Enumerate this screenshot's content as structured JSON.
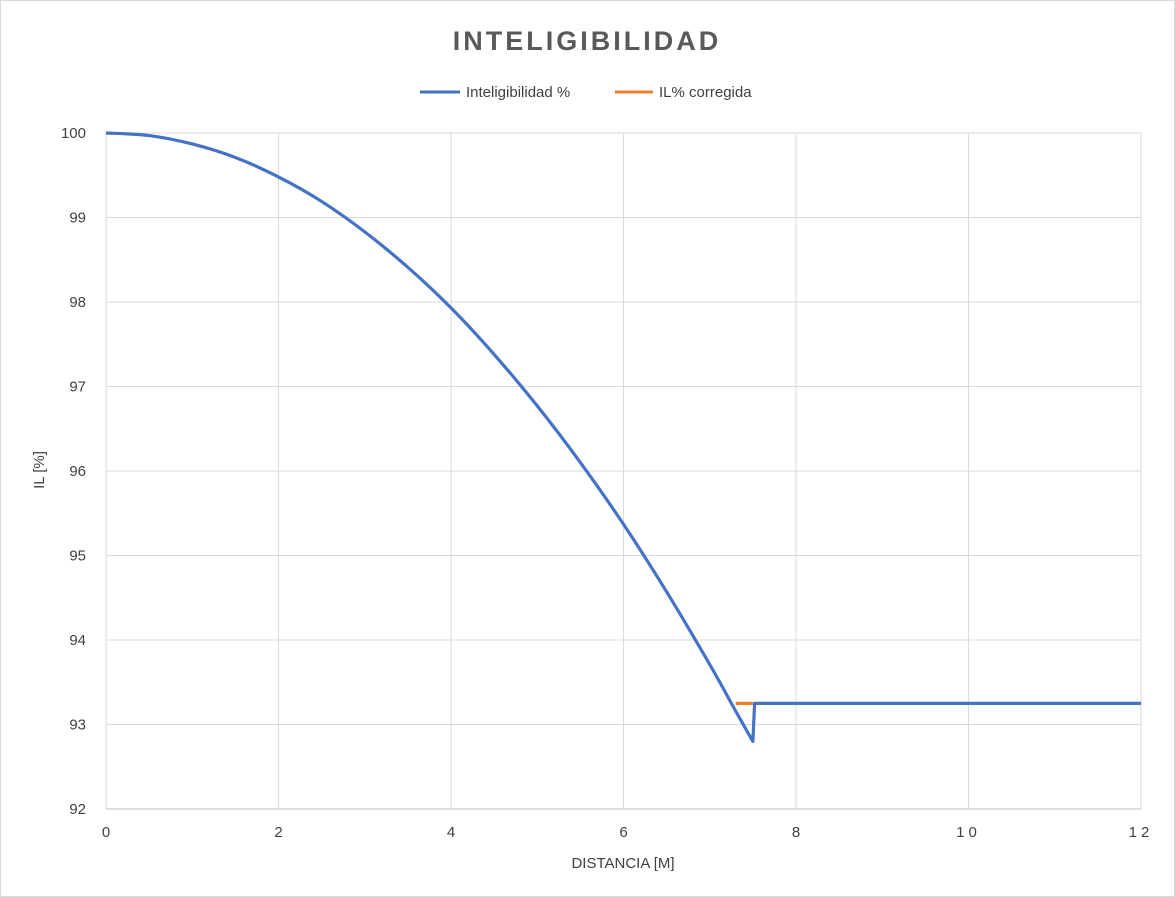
{
  "chart_data": {
    "type": "line",
    "title": "INTELIGIBILIDAD",
    "xlabel": "DISTANCIA [M]",
    "ylabel": "IL [%]",
    "xlim": [
      0,
      12
    ],
    "ylim": [
      92,
      100
    ],
    "x_ticks": [
      "0",
      "2",
      "4",
      "6",
      "8",
      "10",
      "12"
    ],
    "y_ticks": [
      "92",
      "93",
      "94",
      "95",
      "96",
      "97",
      "98",
      "99",
      "100"
    ],
    "grid": true,
    "legend_position": "top",
    "series": [
      {
        "name": "Inteligibilidad %",
        "color": "#4472c4",
        "points": [
          [
            0,
            100
          ],
          [
            0.5,
            99.97
          ],
          [
            1,
            99.87
          ],
          [
            1.5,
            99.71
          ],
          [
            2,
            99.48
          ],
          [
            2.5,
            99.19
          ],
          [
            3,
            98.83
          ],
          [
            3.5,
            98.41
          ],
          [
            4,
            97.93
          ],
          [
            4.5,
            97.38
          ],
          [
            5,
            96.77
          ],
          [
            5.5,
            96.1
          ],
          [
            6,
            95.37
          ],
          [
            6.5,
            94.57
          ],
          [
            7,
            93.71
          ],
          [
            7.3,
            93.16
          ],
          [
            7.5,
            92.8
          ],
          [
            7.52,
            93.25
          ],
          [
            8,
            93.25
          ],
          [
            9,
            93.25
          ],
          [
            10,
            93.25
          ],
          [
            11,
            93.25
          ],
          [
            12,
            93.25
          ]
        ]
      },
      {
        "name": "IL% corregida",
        "color": "#ed7d31",
        "points": [
          [
            7.3,
            93.25
          ],
          [
            7.5,
            93.25
          ]
        ]
      }
    ]
  }
}
